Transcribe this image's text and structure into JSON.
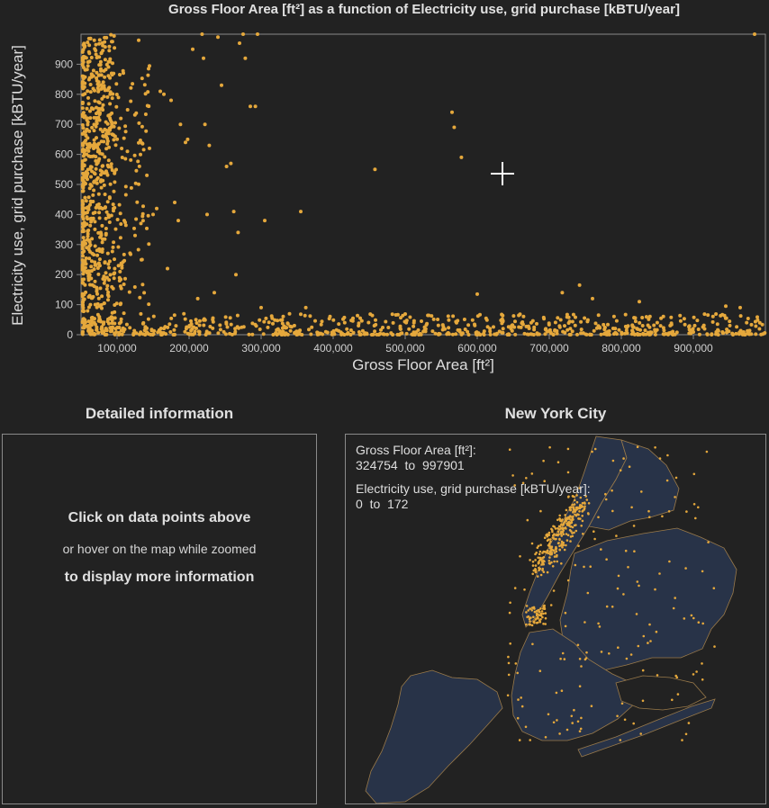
{
  "chart": {
    "title": "Gross Floor Area [ft²] as a function of Electricity use, grid purchase [kBTU/year]"
  },
  "chart_data": {
    "type": "scatter",
    "title": "Gross Floor Area [ft²] as a function of Electricity use, grid purchase [kBTU/year]",
    "xlabel": "Gross Floor Area [ft²]",
    "ylabel": "Electricity use, grid purchase [kBTU/year]",
    "xlim": [
      50000,
      1000000
    ],
    "ylim": [
      0,
      1000
    ],
    "xticks": [
      100000,
      200000,
      300000,
      400000,
      500000,
      600000,
      700000,
      800000,
      900000
    ],
    "xtick_labels": [
      "100,000",
      "200,000",
      "300,000",
      "400,000",
      "500,000",
      "600,000",
      "700,000",
      "800,000",
      "900,000"
    ],
    "yticks": [
      0,
      100,
      200,
      300,
      400,
      500,
      600,
      700,
      800,
      900
    ],
    "ytick_labels": [
      "0",
      "100",
      "200",
      "300",
      "400",
      "500",
      "600",
      "700",
      "800",
      "900"
    ],
    "grid": false,
    "point_color": "#e5a83c",
    "series": [
      {
        "values": [
          [
            72000,
            150
          ],
          [
            95000,
            420
          ],
          [
            110000,
            380
          ],
          [
            125000,
            330
          ],
          [
            130000,
            980
          ],
          [
            145000,
            620
          ],
          [
            150000,
            400
          ],
          [
            155000,
            420
          ],
          [
            160000,
            810
          ],
          [
            165000,
            800
          ],
          [
            170000,
            220
          ],
          [
            175000,
            780
          ],
          [
            180000,
            440
          ],
          [
            185000,
            380
          ],
          [
            188000,
            700
          ],
          [
            195000,
            640
          ],
          [
            198000,
            650
          ],
          [
            205000,
            950
          ],
          [
            212000,
            120
          ],
          [
            218000,
            1000
          ],
          [
            220000,
            920
          ],
          [
            222000,
            700
          ],
          [
            225000,
            400
          ],
          [
            228000,
            630
          ],
          [
            235000,
            140
          ],
          [
            240000,
            990
          ],
          [
            245000,
            830
          ],
          [
            252000,
            560
          ],
          [
            258000,
            570
          ],
          [
            262000,
            410
          ],
          [
            265000,
            200
          ],
          [
            268000,
            340
          ],
          [
            270000,
            970
          ],
          [
            275000,
            1000
          ],
          [
            278000,
            920
          ],
          [
            285000,
            760
          ],
          [
            292000,
            760
          ],
          [
            295000,
            1000
          ],
          [
            300000,
            90
          ],
          [
            305000,
            380
          ],
          [
            355000,
            410
          ],
          [
            362000,
            90
          ],
          [
            458000,
            550
          ],
          [
            565000,
            740
          ],
          [
            568000,
            690
          ],
          [
            578000,
            590
          ],
          [
            600000,
            135
          ],
          [
            718000,
            140
          ],
          [
            742000,
            165
          ],
          [
            760000,
            120
          ],
          [
            985000,
            1000
          ],
          [
            825000,
            110
          ],
          [
            945000,
            95
          ],
          [
            965000,
            90
          ]
        ]
      }
    ]
  },
  "sections": {
    "detail_title": "Detailed information",
    "map_title": "New York City"
  },
  "detail": {
    "line1": "Click on data points above",
    "line2": "or hover on the map while zoomed",
    "line3": "to display more information"
  },
  "map": {
    "x_label": "Gross Floor Area [ft²]:",
    "x_from": "324754",
    "x_to": "997901",
    "y_label": "Electricity use, grid purchase [kBTU/year]:",
    "y_from": "0",
    "y_to": "172",
    "to_word": "to",
    "land_color": "#283348",
    "dot_color": "#e5a83c"
  }
}
